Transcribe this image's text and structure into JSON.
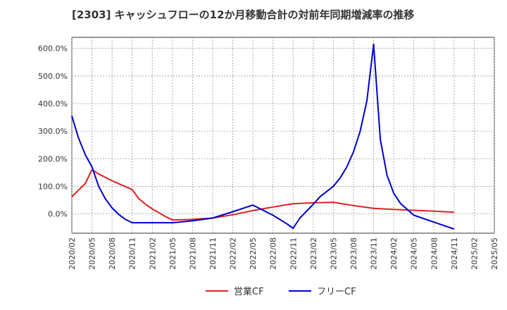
{
  "chart_data": {
    "type": "line",
    "title": "[2303]  キャッシュフローの12か月移動合計の対前年同期増減率の推移",
    "xlabel": "",
    "ylabel": "",
    "ylim": [
      -70,
      640
    ],
    "yticks": [
      0,
      100,
      200,
      300,
      400,
      500,
      600
    ],
    "ytick_labels": [
      "0.0%",
      "100.0%",
      "200.0%",
      "300.0%",
      "400.0%",
      "500.0%",
      "600.0%"
    ],
    "x_range": [
      "2020-02",
      "2025-05"
    ],
    "xtick_labels": [
      "2020/02",
      "2020/05",
      "2020/08",
      "2020/11",
      "2021/02",
      "2021/05",
      "2021/08",
      "2021/11",
      "2022/02",
      "2022/05",
      "2022/08",
      "2022/11",
      "2023/02",
      "2023/05",
      "2023/08",
      "2023/11",
      "2024/02",
      "2024/05",
      "2024/08",
      "2024/11",
      "2025/02",
      "2025/05"
    ],
    "grid": true,
    "legend_position": "bottom",
    "series": [
      {
        "name": "営業CF",
        "color": "#dd2222",
        "points": [
          [
            "2020-02",
            62
          ],
          [
            "2020-04",
            110
          ],
          [
            "2020-05",
            160
          ],
          [
            "2020-06",
            145
          ],
          [
            "2020-08",
            120
          ],
          [
            "2020-11",
            88
          ],
          [
            "2020-12",
            55
          ],
          [
            "2021-01",
            35
          ],
          [
            "2021-02",
            18
          ],
          [
            "2021-04",
            -10
          ],
          [
            "2021-05",
            -22
          ],
          [
            "2021-08",
            -20
          ],
          [
            "2021-11",
            -15
          ],
          [
            "2022-02",
            -3
          ],
          [
            "2022-05",
            12
          ],
          [
            "2022-08",
            25
          ],
          [
            "2022-11",
            37
          ],
          [
            "2023-02",
            40
          ],
          [
            "2023-05",
            42
          ],
          [
            "2023-08",
            30
          ],
          [
            "2023-11",
            20
          ],
          [
            "2024-02",
            16
          ],
          [
            "2024-05",
            13
          ],
          [
            "2024-08",
            10
          ],
          [
            "2024-11",
            6
          ]
        ]
      },
      {
        "name": "フリーCF",
        "color": "#0000cc",
        "points": [
          [
            "2020-02",
            355
          ],
          [
            "2020-03",
            275
          ],
          [
            "2020-04",
            215
          ],
          [
            "2020-05",
            170
          ],
          [
            "2020-06",
            100
          ],
          [
            "2020-07",
            55
          ],
          [
            "2020-08",
            22
          ],
          [
            "2020-09",
            -2
          ],
          [
            "2020-10",
            -20
          ],
          [
            "2020-11",
            -32
          ],
          [
            "2021-02",
            -32
          ],
          [
            "2021-05",
            -32
          ],
          [
            "2021-08",
            -25
          ],
          [
            "2021-11",
            -15
          ],
          [
            "2022-02",
            8
          ],
          [
            "2022-05",
            32
          ],
          [
            "2022-08",
            -5
          ],
          [
            "2022-10",
            -35
          ],
          [
            "2022-11",
            -52
          ],
          [
            "2022-12",
            -15
          ],
          [
            "2023-02",
            35
          ],
          [
            "2023-03",
            62
          ],
          [
            "2023-05",
            100
          ],
          [
            "2023-06",
            130
          ],
          [
            "2023-07",
            170
          ],
          [
            "2023-08",
            225
          ],
          [
            "2023-09",
            300
          ],
          [
            "2023-10",
            410
          ],
          [
            "2023-11",
            615
          ],
          [
            "2023-12",
            270
          ],
          [
            "2024-01",
            140
          ],
          [
            "2024-02",
            75
          ],
          [
            "2024-03",
            38
          ],
          [
            "2024-05",
            -5
          ],
          [
            "2024-08",
            -30
          ],
          [
            "2024-11",
            -55
          ]
        ]
      }
    ]
  }
}
